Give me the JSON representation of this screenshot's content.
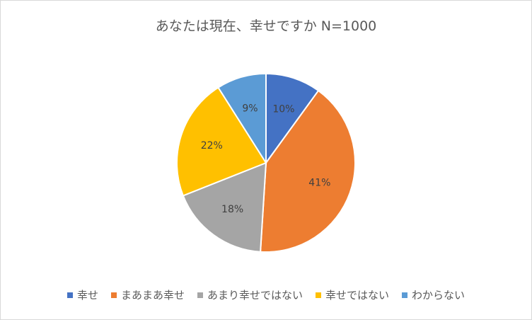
{
  "chart_data": {
    "type": "pie",
    "title": "あなたは現在、幸せですか N=1000",
    "categories": [
      "幸せ",
      "まあまあ幸せ",
      "あまり幸せではない",
      "幸せではない",
      "わからない"
    ],
    "values": [
      10,
      41,
      18,
      22,
      9
    ],
    "labels": [
      "10%",
      "41%",
      "18%",
      "22%",
      "9%"
    ],
    "colors": [
      "#4472C4",
      "#ED7D31",
      "#A5A5A5",
      "#FFC000",
      "#5B9BD5"
    ],
    "legend_position": "bottom"
  }
}
